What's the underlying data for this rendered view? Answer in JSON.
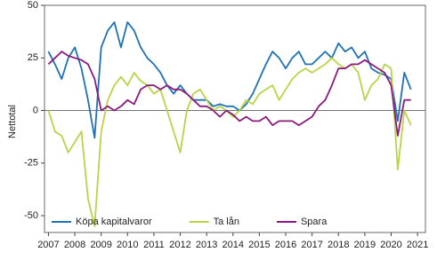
{
  "chart_data": {
    "type": "line",
    "y_label": "Nettotal",
    "x": [
      2007,
      2007.25,
      2007.5,
      2007.75,
      2008,
      2008.25,
      2008.5,
      2008.75,
      2009,
      2009.25,
      2009.5,
      2009.75,
      2010,
      2010.25,
      2010.5,
      2010.75,
      2011,
      2011.25,
      2011.5,
      2011.75,
      2012,
      2012.25,
      2012.5,
      2012.75,
      2013,
      2013.25,
      2013.5,
      2013.75,
      2014,
      2014.25,
      2014.5,
      2014.75,
      2015,
      2015.25,
      2015.5,
      2015.75,
      2016,
      2016.25,
      2016.5,
      2016.75,
      2017,
      2017.25,
      2017.5,
      2017.75,
      2018,
      2018.25,
      2018.5,
      2018.75,
      2019,
      2019.25,
      2019.5,
      2019.75,
      2020,
      2020.25,
      2020.5,
      2020.75
    ],
    "series": [
      {
        "name": "Köpa kapitalvaror",
        "color": "#1f71b3",
        "values": [
          28,
          22,
          15,
          25,
          30,
          20,
          5,
          -13,
          30,
          38,
          42,
          30,
          42,
          38,
          30,
          25,
          22,
          18,
          12,
          8,
          12,
          8,
          5,
          5,
          5,
          2,
          3,
          2,
          2,
          0,
          3,
          8,
          15,
          22,
          28,
          25,
          20,
          25,
          28,
          22,
          22,
          25,
          28,
          25,
          32,
          28,
          30,
          25,
          28,
          20,
          18,
          17,
          15,
          -5,
          18,
          10
        ]
      },
      {
        "name": "Ta lån",
        "color": "#b8d449",
        "values": [
          0,
          -10,
          -12,
          -20,
          -15,
          -10,
          -42,
          -55,
          -10,
          5,
          12,
          16,
          12,
          18,
          14,
          12,
          8,
          10,
          0,
          -10,
          -20,
          0,
          8,
          10,
          5,
          0,
          2,
          0,
          -3,
          0,
          5,
          3,
          8,
          10,
          12,
          5,
          10,
          15,
          18,
          20,
          18,
          20,
          22,
          25,
          22,
          20,
          22,
          18,
          5,
          12,
          15,
          22,
          20,
          -28,
          0,
          -7
        ]
      },
      {
        "name": "Spara",
        "color": "#8b1a7e",
        "values": [
          22,
          25,
          28,
          26,
          25,
          24,
          22,
          15,
          0,
          2,
          0,
          2,
          5,
          3,
          10,
          12,
          12,
          10,
          12,
          10,
          10,
          8,
          5,
          2,
          2,
          0,
          -3,
          0,
          -2,
          -5,
          -3,
          -5,
          -5,
          -3,
          -7,
          -5,
          -5,
          -5,
          -7,
          -5,
          -3,
          2,
          5,
          12,
          20,
          20,
          22,
          22,
          24,
          22,
          20,
          18,
          12,
          -12,
          5,
          5
        ]
      }
    ],
    "xlim": [
      2006.85,
      2021.3
    ],
    "xticks": [
      2007,
      2008,
      2009,
      2010,
      2011,
      2012,
      2013,
      2014,
      2015,
      2016,
      2017,
      2018,
      2019,
      2020,
      2021
    ],
    "ylim": [
      -58,
      50
    ],
    "yticks": [
      -50,
      -25,
      0,
      25,
      50
    ],
    "legend": "bottom-left"
  }
}
